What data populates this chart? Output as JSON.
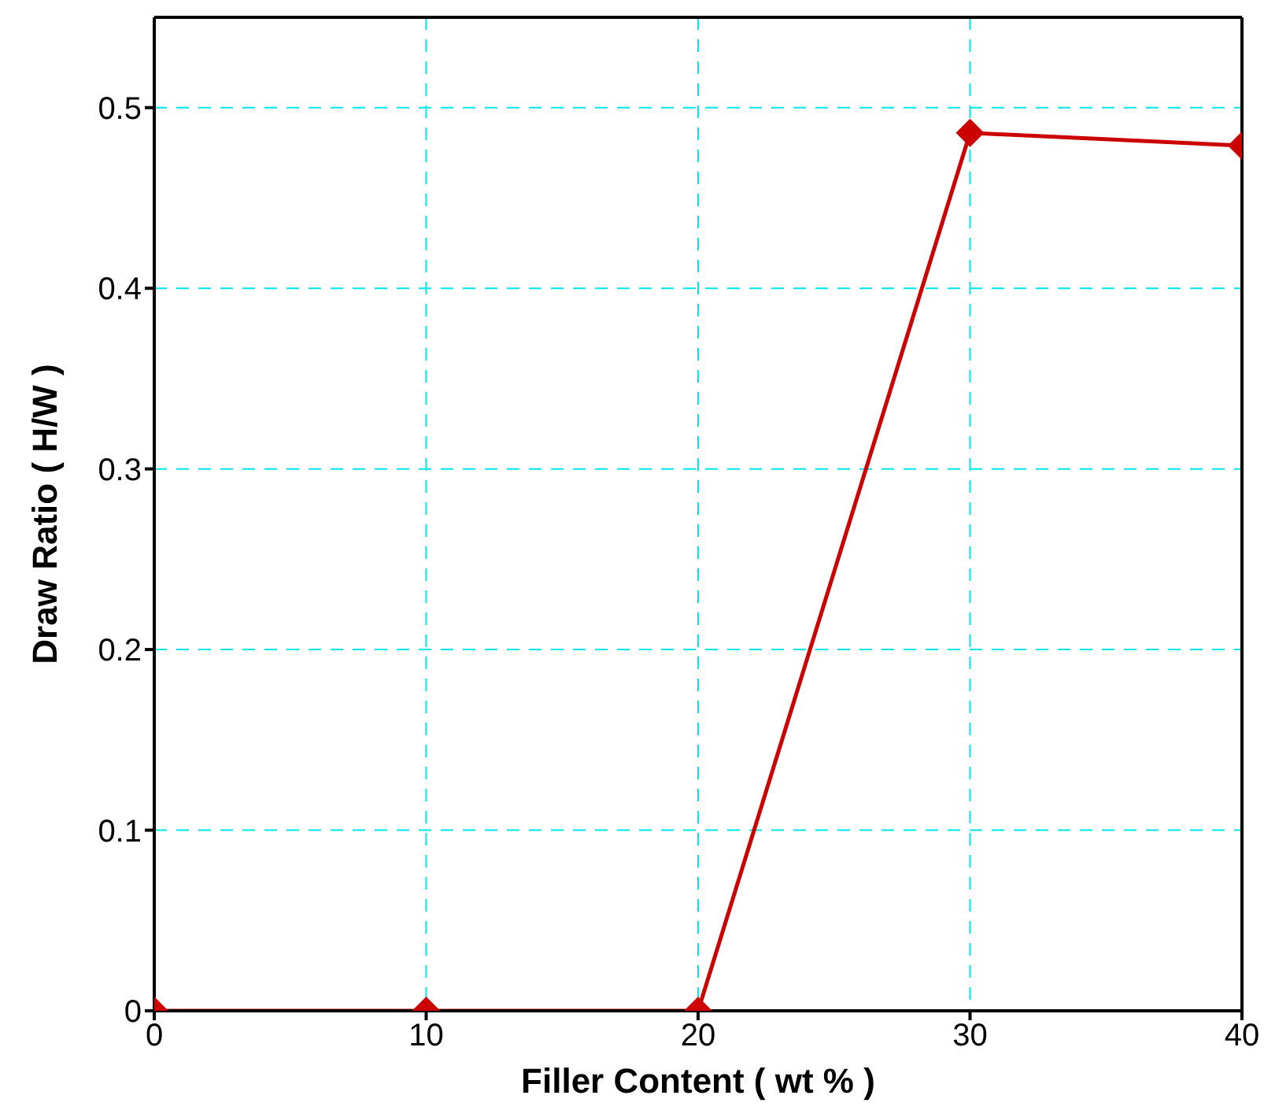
{
  "chart_data": {
    "type": "line",
    "xlabel": "Filler Content ( wt % )",
    "ylabel": "Draw Ratio ( H/W )",
    "x": [
      0,
      10,
      20,
      30,
      40
    ],
    "series": [
      {
        "color": "#cc0000",
        "values": [
          0,
          0,
          0,
          0.486,
          0.479
        ]
      }
    ],
    "xlim": [
      0,
      40
    ],
    "xticks": [
      0,
      10,
      20,
      30,
      40
    ],
    "ylim": [
      0,
      0.55
    ],
    "yticks": [
      0,
      0.1,
      0.2,
      0.3,
      0.4,
      0.5
    ],
    "grid": true,
    "marker": "diamond",
    "line_style": "solid",
    "legend": false
  }
}
